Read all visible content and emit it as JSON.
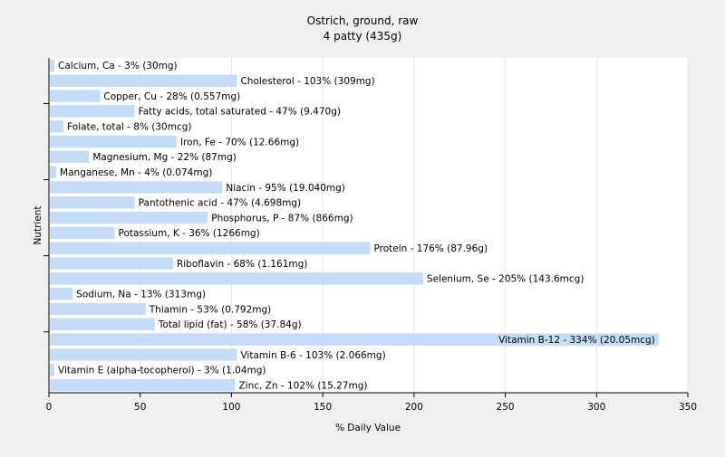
{
  "chart_data": {
    "type": "bar",
    "orientation": "horizontal",
    "title": "Ostrich, ground, raw",
    "subtitle": "4 patty (435g)",
    "xlabel": "% Daily Value",
    "ylabel": "Nutrient",
    "xlim": [
      0,
      350
    ],
    "xticks": [
      0,
      50,
      100,
      150,
      200,
      250,
      300,
      350
    ],
    "grid": true,
    "bar_color": "#c4dcf8",
    "categories": [
      "Calcium, Ca",
      "Cholesterol",
      "Copper, Cu",
      "Fatty acids, total saturated",
      "Folate, total",
      "Iron, Fe",
      "Magnesium, Mg",
      "Manganese, Mn",
      "Niacin",
      "Pantothenic acid",
      "Phosphorus, P",
      "Potassium, K",
      "Protein",
      "Riboflavin",
      "Selenium, Se",
      "Sodium, Na",
      "Thiamin",
      "Total lipid (fat)",
      "Vitamin B-12",
      "Vitamin B-6",
      "Vitamin E (alpha-tocopherol)",
      "Zinc, Zn"
    ],
    "values": [
      3,
      103,
      28,
      47,
      8,
      70,
      22,
      4,
      95,
      47,
      87,
      36,
      176,
      68,
      205,
      13,
      53,
      58,
      334,
      103,
      3,
      102
    ],
    "labels": [
      "Calcium, Ca - 3% (30mg)",
      "Cholesterol - 103% (309mg)",
      "Copper, Cu - 28% (0.557mg)",
      "Fatty acids, total saturated - 47% (9.470g)",
      "Folate, total - 8% (30mcg)",
      "Iron, Fe - 70% (12.66mg)",
      "Magnesium, Mg - 22% (87mg)",
      "Manganese, Mn - 4% (0.074mg)",
      "Niacin - 95% (19.040mg)",
      "Pantothenic acid - 47% (4.698mg)",
      "Phosphorus, P - 87% (866mg)",
      "Potassium, K - 36% (1266mg)",
      "Protein - 176% (87.96g)",
      "Riboflavin - 68% (1.161mg)",
      "Selenium, Se - 205% (143.6mcg)",
      "Sodium, Na - 13% (313mg)",
      "Thiamin - 53% (0.792mg)",
      "Total lipid (fat) - 58% (37.84g)",
      "Vitamin B-12 - 334% (20.05mcg)",
      "Vitamin B-6 - 103% (2.066mg)",
      "Vitamin E (alpha-tocopherol) - 3% (1.04mg)",
      "Zinc, Zn - 102% (15.27mg)"
    ]
  }
}
